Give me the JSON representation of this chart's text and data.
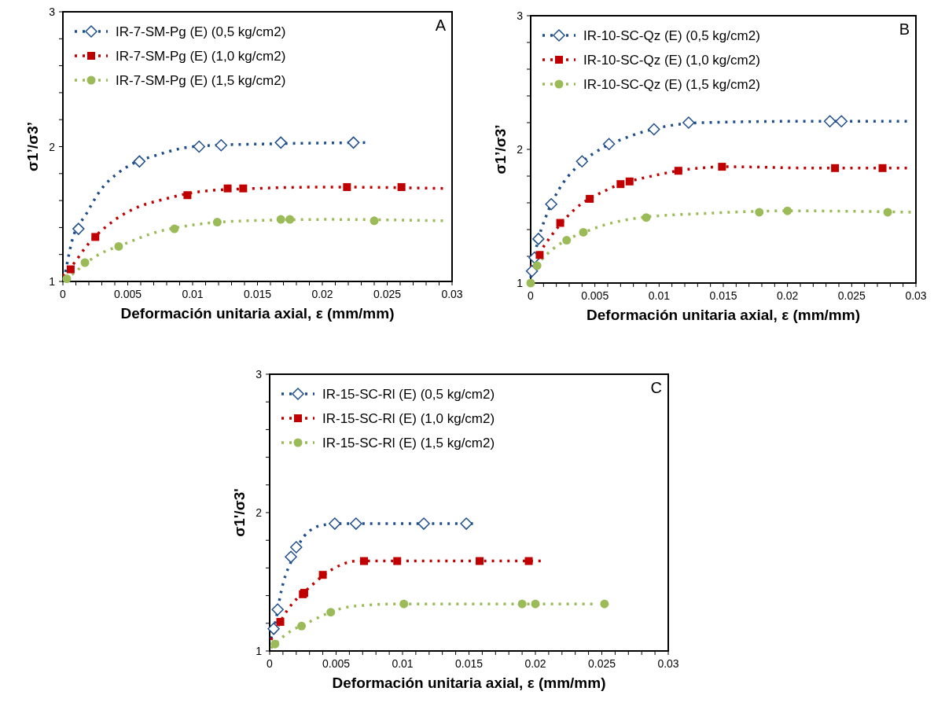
{
  "chart_data": [
    {
      "type": "scatter",
      "ylabel": "σ1’/σ3’",
      "xlabel": "Deformación unitaria axial, ε (mm/mm)",
      "annotations": [
        "A"
      ],
      "legend": "top left",
      "grid": false,
      "xlim": [
        0,
        0.03
      ],
      "ylim": [
        1,
        3
      ],
      "xticks": [
        0,
        {
          "value": 0.001,
          "label": null
        },
        {
          "value": 0.002,
          "label": null
        },
        {
          "value": 0.003,
          "label": null
        },
        {
          "value": 0.004,
          "label": null
        },
        0.005,
        {
          "value": 0.006,
          "label": null
        },
        {
          "value": 0.007,
          "label": null
        },
        {
          "value": 0.008,
          "label": null
        },
        {
          "value": 0.009,
          "label": null
        },
        0.01,
        {
          "value": 0.011,
          "label": null
        },
        {
          "value": 0.012,
          "label": null
        },
        {
          "value": 0.013,
          "label": null
        },
        {
          "value": 0.014,
          "label": null
        },
        0.015,
        {
          "value": 0.016,
          "label": null
        },
        {
          "value": 0.017,
          "label": null
        },
        {
          "value": 0.018,
          "label": null
        },
        {
          "value": 0.019,
          "label": null
        },
        0.02,
        {
          "value": 0.021,
          "label": null
        },
        {
          "value": 0.022,
          "label": null
        },
        {
          "value": 0.023,
          "label": null
        },
        {
          "value": 0.024,
          "label": null
        },
        0.025,
        {
          "value": 0.026,
          "label": null
        },
        {
          "value": 0.027,
          "label": null
        },
        {
          "value": 0.028,
          "label": null
        },
        {
          "value": 0.029,
          "label": null
        },
        0.03
      ],
      "yticks": [
        1,
        {
          "value": 1.2,
          "label": null
        },
        {
          "value": 1.4,
          "label": null
        },
        {
          "value": 1.6,
          "label": null
        },
        {
          "value": 1.8,
          "label": null
        },
        2,
        {
          "value": 2.2,
          "label": null
        },
        {
          "value": 2.4,
          "label": null
        },
        {
          "value": 2.6,
          "label": null
        },
        {
          "value": 2.8,
          "label": null
        },
        3
      ],
      "series": [
        {
          "type": "line",
          "line_style": "dotted",
          "marker": "none",
          "color": "#1f4e8c",
          "x": [
            0.0002,
            0.0007,
            0.0018,
            0.003,
            0.0042,
            0.0055,
            0.007,
            0.0093,
            0.0116,
            0.0156,
            0.0233
          ],
          "values": [
            1.07,
            1.3,
            1.5,
            1.69,
            1.8,
            1.88,
            1.93,
            1.99,
            2.01,
            2.02,
            2.03
          ]
        },
        {
          "type": "line",
          "line_style": "dotted",
          "marker": "none",
          "color": "#c00000",
          "x": [
            0,
            0.0009,
            0.0018,
            0.0035,
            0.0055,
            0.0078,
            0.0109,
            0.0149,
            0.0205,
            0.0293
          ],
          "values": [
            1.04,
            1.14,
            1.26,
            1.42,
            1.54,
            1.61,
            1.67,
            1.69,
            1.7,
            1.69
          ]
        },
        {
          "type": "line",
          "line_style": "dotted",
          "marker": "none",
          "color": "#9bbb59",
          "x": [
            0.0007,
            0.0026,
            0.0048,
            0.007,
            0.0101,
            0.0141,
            0.0205,
            0.0293
          ],
          "values": [
            1.05,
            1.19,
            1.28,
            1.36,
            1.42,
            1.45,
            1.46,
            1.45
          ]
        },
        {
          "name": "IR-7-SM-Pg (E) (0,5 kg/cm2)",
          "marker": "diamond",
          "color": "#1f4e8c",
          "x": [
            0.0012,
            0.0059,
            0.0105,
            0.0122,
            0.0168,
            0.0224
          ],
          "values": [
            1.39,
            1.89,
            2.0,
            2.01,
            2.03,
            2.03
          ]
        },
        {
          "name": "IR-7-SM-Pg (E) (1,0 kg/cm2)",
          "marker": "square",
          "color": "#c00000",
          "x": [
            0.0006,
            0.0025,
            0.0096,
            0.0127,
            0.0139,
            0.0219,
            0.0261
          ],
          "values": [
            1.09,
            1.33,
            1.64,
            1.69,
            1.69,
            1.7,
            1.7
          ]
        },
        {
          "name": "IR-7-SM-Pg (E) (1,5 kg/cm2)",
          "marker": "circle",
          "color": "#9bbb59",
          "x": [
            0.0003,
            0.0017,
            0.0043,
            0.0086,
            0.0119,
            0.0168,
            0.0175,
            0.024
          ],
          "values": [
            1.02,
            1.14,
            1.26,
            1.39,
            1.44,
            1.46,
            1.46,
            1.45
          ]
        }
      ]
    },
    {
      "type": "scatter",
      "ylabel": "σ1’/σ3’",
      "xlabel": "Deformación unitaria axial, ε (mm/mm)",
      "annotations": [
        "B"
      ],
      "legend": "top left",
      "grid": false,
      "xlim": [
        0,
        0.03
      ],
      "ylim": [
        1,
        3
      ],
      "xticks": [
        0,
        {
          "value": 0.001,
          "label": null
        },
        {
          "value": 0.002,
          "label": null
        },
        {
          "value": 0.003,
          "label": null
        },
        {
          "value": 0.004,
          "label": null
        },
        0.005,
        {
          "value": 0.006,
          "label": null
        },
        {
          "value": 0.007,
          "label": null
        },
        {
          "value": 0.008,
          "label": null
        },
        {
          "value": 0.009,
          "label": null
        },
        0.01,
        {
          "value": 0.011,
          "label": null
        },
        {
          "value": 0.012,
          "label": null
        },
        {
          "value": 0.013,
          "label": null
        },
        {
          "value": 0.014,
          "label": null
        },
        0.015,
        {
          "value": 0.016,
          "label": null
        },
        {
          "value": 0.017,
          "label": null
        },
        {
          "value": 0.018,
          "label": null
        },
        {
          "value": 0.019,
          "label": null
        },
        0.02,
        {
          "value": 0.021,
          "label": null
        },
        {
          "value": 0.022,
          "label": null
        },
        {
          "value": 0.023,
          "label": null
        },
        {
          "value": 0.024,
          "label": null
        },
        0.025,
        {
          "value": 0.026,
          "label": null
        },
        {
          "value": 0.027,
          "label": null
        },
        {
          "value": 0.028,
          "label": null
        },
        {
          "value": 0.029,
          "label": null
        },
        0.03
      ],
      "yticks": [
        1,
        {
          "value": 1.2,
          "label": null
        },
        {
          "value": 1.4,
          "label": null
        },
        {
          "value": 1.6,
          "label": null
        },
        {
          "value": 1.8,
          "label": null
        },
        2,
        {
          "value": 2.2,
          "label": null
        },
        {
          "value": 2.4,
          "label": null
        },
        {
          "value": 2.6,
          "label": null
        },
        {
          "value": 2.8,
          "label": null
        },
        3
      ],
      "series": [
        {
          "type": "line",
          "line_style": "dotted",
          "marker": "none",
          "color": "#1f4e8c",
          "x": [
            0,
            0.0005,
            0.0012,
            0.0022,
            0.0036,
            0.0054,
            0.0075,
            0.0104,
            0.0133,
            0.0209,
            0.0293
          ],
          "values": [
            1.04,
            1.29,
            1.5,
            1.7,
            1.87,
            2.0,
            2.09,
            2.17,
            2.2,
            2.21,
            2.21
          ]
        },
        {
          "type": "line",
          "line_style": "dotted",
          "marker": "none",
          "color": "#c00000",
          "x": [
            0,
            0.0012,
            0.0033,
            0.006,
            0.0099,
            0.0131,
            0.0155,
            0.0221,
            0.0293
          ],
          "values": [
            1.12,
            1.3,
            1.54,
            1.7,
            1.81,
            1.86,
            1.87,
            1.86,
            1.86
          ]
        },
        {
          "type": "line",
          "line_style": "dotted",
          "marker": "none",
          "color": "#9bbb59",
          "x": [
            0,
            0.0018,
            0.0047,
            0.0086,
            0.0134,
            0.0201,
            0.0296
          ],
          "values": [
            1.09,
            1.26,
            1.4,
            1.49,
            1.52,
            1.54,
            1.53
          ]
        },
        {
          "name": "IR-10-SC-Qz (E) (0,5 kg/cm2)",
          "marker": "diamond",
          "color": "#1f4e8c",
          "x": [
            0.0001,
            0.0003,
            0.0006,
            0.0016,
            0.004,
            0.0061,
            0.0096,
            0.0123,
            0.0233,
            0.0242
          ],
          "values": [
            1.09,
            1.19,
            1.33,
            1.59,
            1.91,
            2.04,
            2.15,
            2.2,
            2.21,
            2.21
          ]
        },
        {
          "name": "IR-10-SC-Qz (E) (1,0 kg/cm2)",
          "marker": "square",
          "color": "#c00000",
          "x": [
            0.0007,
            0.0023,
            0.0046,
            0.007,
            0.0077,
            0.0115,
            0.0149,
            0.0237,
            0.0274
          ],
          "values": [
            1.21,
            1.45,
            1.63,
            1.74,
            1.76,
            1.84,
            1.87,
            1.86,
            1.86
          ]
        },
        {
          "name": "IR-10-SC-Qz (E) (1,5 kg/cm2)",
          "marker": "circle",
          "color": "#9bbb59",
          "x": [
            0,
            0.0005,
            0.0028,
            0.0041,
            0.009,
            0.0178,
            0.02,
            0.0278
          ],
          "values": [
            1.0,
            1.13,
            1.32,
            1.38,
            1.49,
            1.53,
            1.54,
            1.53
          ]
        }
      ]
    },
    {
      "type": "scatter",
      "ylabel": "σ1'/σ3'",
      "xlabel": "Deformación unitaria axial, ε (mm/mm)",
      "annotations": [
        "C"
      ],
      "legend": "top left",
      "grid": false,
      "xlim": [
        0,
        0.03
      ],
      "ylim": [
        1,
        3
      ],
      "xticks": [
        0,
        {
          "value": 0.001,
          "label": null
        },
        {
          "value": 0.002,
          "label": null
        },
        {
          "value": 0.003,
          "label": null
        },
        {
          "value": 0.004,
          "label": null
        },
        0.005,
        {
          "value": 0.006,
          "label": null
        },
        {
          "value": 0.007,
          "label": null
        },
        {
          "value": 0.008,
          "label": null
        },
        {
          "value": 0.009,
          "label": null
        },
        0.01,
        {
          "value": 0.011,
          "label": null
        },
        {
          "value": 0.012,
          "label": null
        },
        {
          "value": 0.013,
          "label": null
        },
        {
          "value": 0.014,
          "label": null
        },
        0.015,
        {
          "value": 0.016,
          "label": null
        },
        {
          "value": 0.017,
          "label": null
        },
        {
          "value": 0.018,
          "label": null
        },
        {
          "value": 0.019,
          "label": null
        },
        0.02,
        {
          "value": 0.021,
          "label": null
        },
        {
          "value": 0.022,
          "label": null
        },
        {
          "value": 0.023,
          "label": null
        },
        {
          "value": 0.024,
          "label": null
        },
        0.025,
        {
          "value": 0.026,
          "label": null
        },
        {
          "value": 0.027,
          "label": null
        },
        {
          "value": 0.028,
          "label": null
        },
        {
          "value": 0.029,
          "label": null
        },
        0.03
      ],
      "yticks": [
        1,
        {
          "value": 1.2,
          "label": null
        },
        {
          "value": 1.4,
          "label": null
        },
        {
          "value": 1.6,
          "label": null
        },
        {
          "value": 1.8,
          "label": null
        },
        2,
        {
          "value": 2.2,
          "label": null
        },
        {
          "value": 2.4,
          "label": null
        },
        {
          "value": 2.6,
          "label": null
        },
        {
          "value": 2.8,
          "label": null
        },
        3
      ],
      "series": [
        {
          "type": "line",
          "line_style": "dotted",
          "marker": "none",
          "color": "#1f4e8c",
          "x": [
            0.0001,
            0.0005,
            0.0008,
            0.0012,
            0.0015,
            0.0026,
            0.004,
            0.0054,
            0.0153
          ],
          "values": [
            1.09,
            1.24,
            1.4,
            1.55,
            1.62,
            1.83,
            1.91,
            1.92,
            1.92
          ]
        },
        {
          "type": "line",
          "line_style": "dotted",
          "marker": "none",
          "color": "#c00000",
          "x": [
            0.0001,
            0.0013,
            0.003,
            0.0049,
            0.0065,
            0.0204
          ],
          "values": [
            1.08,
            1.29,
            1.46,
            1.6,
            1.65,
            1.65
          ]
        },
        {
          "type": "line",
          "line_style": "dotted",
          "marker": "none",
          "color": "#9bbb59",
          "x": [
            0.0001,
            0.0011,
            0.0032,
            0.0055,
            0.0071,
            0.0096,
            0.0243
          ],
          "values": [
            1.02,
            1.11,
            1.22,
            1.31,
            1.33,
            1.34,
            1.34
          ]
        },
        {
          "name": "IR-15-SC-Rl (E) (0,5 kg/cm2)",
          "marker": "diamond",
          "color": "#1f4e8c",
          "x": [
            0.0003,
            0.0006,
            0.0016,
            0.002,
            0.0049,
            0.0065,
            0.0116,
            0.0148
          ],
          "values": [
            1.16,
            1.3,
            1.68,
            1.75,
            1.92,
            1.92,
            1.92,
            1.92
          ]
        },
        {
          "name": "IR-15-SC-Rl (E) (1,0 kg/cm2)",
          "marker": "square",
          "color": "#c00000",
          "x": [
            0.0008,
            0.0025,
            0.0026,
            0.004,
            0.0071,
            0.0096,
            0.0158,
            0.0195
          ],
          "values": [
            1.21,
            1.41,
            1.42,
            1.55,
            1.65,
            1.65,
            1.65,
            1.65
          ]
        },
        {
          "name": "IR-15-SC-Rl (E) (1,5 kg/cm2)",
          "marker": "circle",
          "color": "#9bbb59",
          "x": [
            0.0004,
            0.0024,
            0.0046,
            0.0101,
            0.019,
            0.02,
            0.0252
          ],
          "values": [
            1.05,
            1.18,
            1.28,
            1.34,
            1.34,
            1.34,
            1.34
          ]
        }
      ]
    }
  ]
}
